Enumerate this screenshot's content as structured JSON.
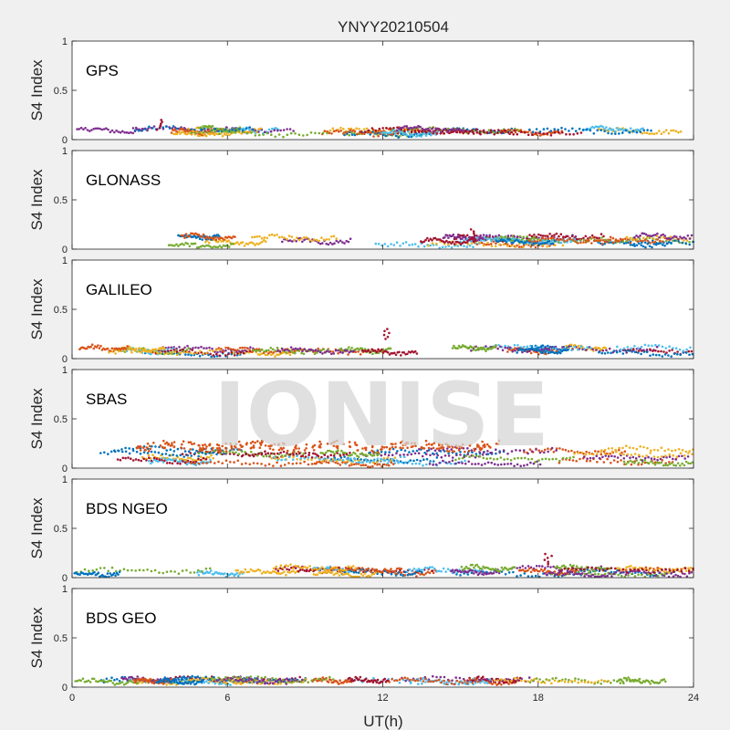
{
  "figure": {
    "title": "YNYY20210504",
    "watermark": "IONISE",
    "background": "#f0f0f0",
    "axes_background": "#ffffff"
  },
  "chart_data": [
    {
      "type": "scatter",
      "panel_label": "GPS",
      "ylabel": "S4 Index",
      "ylim": [
        0,
        1
      ],
      "xlim": [
        0,
        24
      ],
      "yticks": [
        "0",
        "0.5",
        "1"
      ],
      "xticks": [
        "0",
        "6",
        "12",
        "18",
        "24"
      ],
      "xlabel": "",
      "typical_level": [
        0.05,
        0.15
      ],
      "peak": {
        "x": 3.4,
        "y": 0.2
      }
    },
    {
      "type": "scatter",
      "panel_label": "GLONASS",
      "ylabel": "S4 Index",
      "ylim": [
        0,
        1
      ],
      "xlim": [
        0,
        24
      ],
      "yticks": [
        "0",
        "0.5",
        "1"
      ],
      "xticks": [
        "0",
        "6",
        "12",
        "18",
        "24"
      ],
      "xlabel": "",
      "typical_level": [
        0.03,
        0.2
      ],
      "peak": {
        "x": 15.5,
        "y": 0.2
      }
    },
    {
      "type": "scatter",
      "panel_label": "GALILEO",
      "ylabel": "S4 Index",
      "ylim": [
        0,
        1
      ],
      "xlim": [
        0,
        24
      ],
      "yticks": [
        "0",
        "0.5",
        "1"
      ],
      "xticks": [
        "0",
        "6",
        "12",
        "18",
        "24"
      ],
      "xlabel": "",
      "typical_level": [
        0.05,
        0.15
      ],
      "peak": {
        "x": 12.1,
        "y": 0.3
      }
    },
    {
      "type": "scatter",
      "panel_label": "SBAS",
      "ylabel": "S4 Index",
      "ylim": [
        0,
        1
      ],
      "xlim": [
        0,
        24
      ],
      "yticks": [
        "0",
        "0.5",
        "1"
      ],
      "xticks": [
        "0",
        "6",
        "12",
        "18",
        "24"
      ],
      "xlabel": "",
      "typical_level": [
        0.03,
        0.3
      ],
      "orange_band": {
        "x_range": [
          2.5,
          16.5
        ],
        "y_range": [
          0.18,
          0.3
        ]
      }
    },
    {
      "type": "scatter",
      "panel_label": "BDS NGEO",
      "ylabel": "S4 Index",
      "ylim": [
        0,
        1
      ],
      "xlim": [
        0,
        24
      ],
      "yticks": [
        "0",
        "0.5",
        "1"
      ],
      "xticks": [
        "0",
        "6",
        "12",
        "18",
        "24"
      ],
      "xlabel": "",
      "typical_level": [
        0.03,
        0.15
      ],
      "peak": {
        "x": 18.4,
        "y": 0.24
      }
    },
    {
      "type": "scatter",
      "panel_label": "BDS GEO",
      "ylabel": "S4 Index",
      "ylim": [
        0,
        1
      ],
      "xlim": [
        0,
        24
      ],
      "yticks": [
        "0",
        "0.5",
        "1"
      ],
      "xticks": [
        "0",
        "6",
        "12",
        "18",
        "24"
      ],
      "xlabel": "UT(h)",
      "typical_level": [
        0.05,
        0.1
      ]
    }
  ],
  "series_colors": [
    "#0072BD",
    "#D95319",
    "#EDB120",
    "#7E2F8E",
    "#77AC30",
    "#4DBEEE",
    "#A2142F"
  ]
}
